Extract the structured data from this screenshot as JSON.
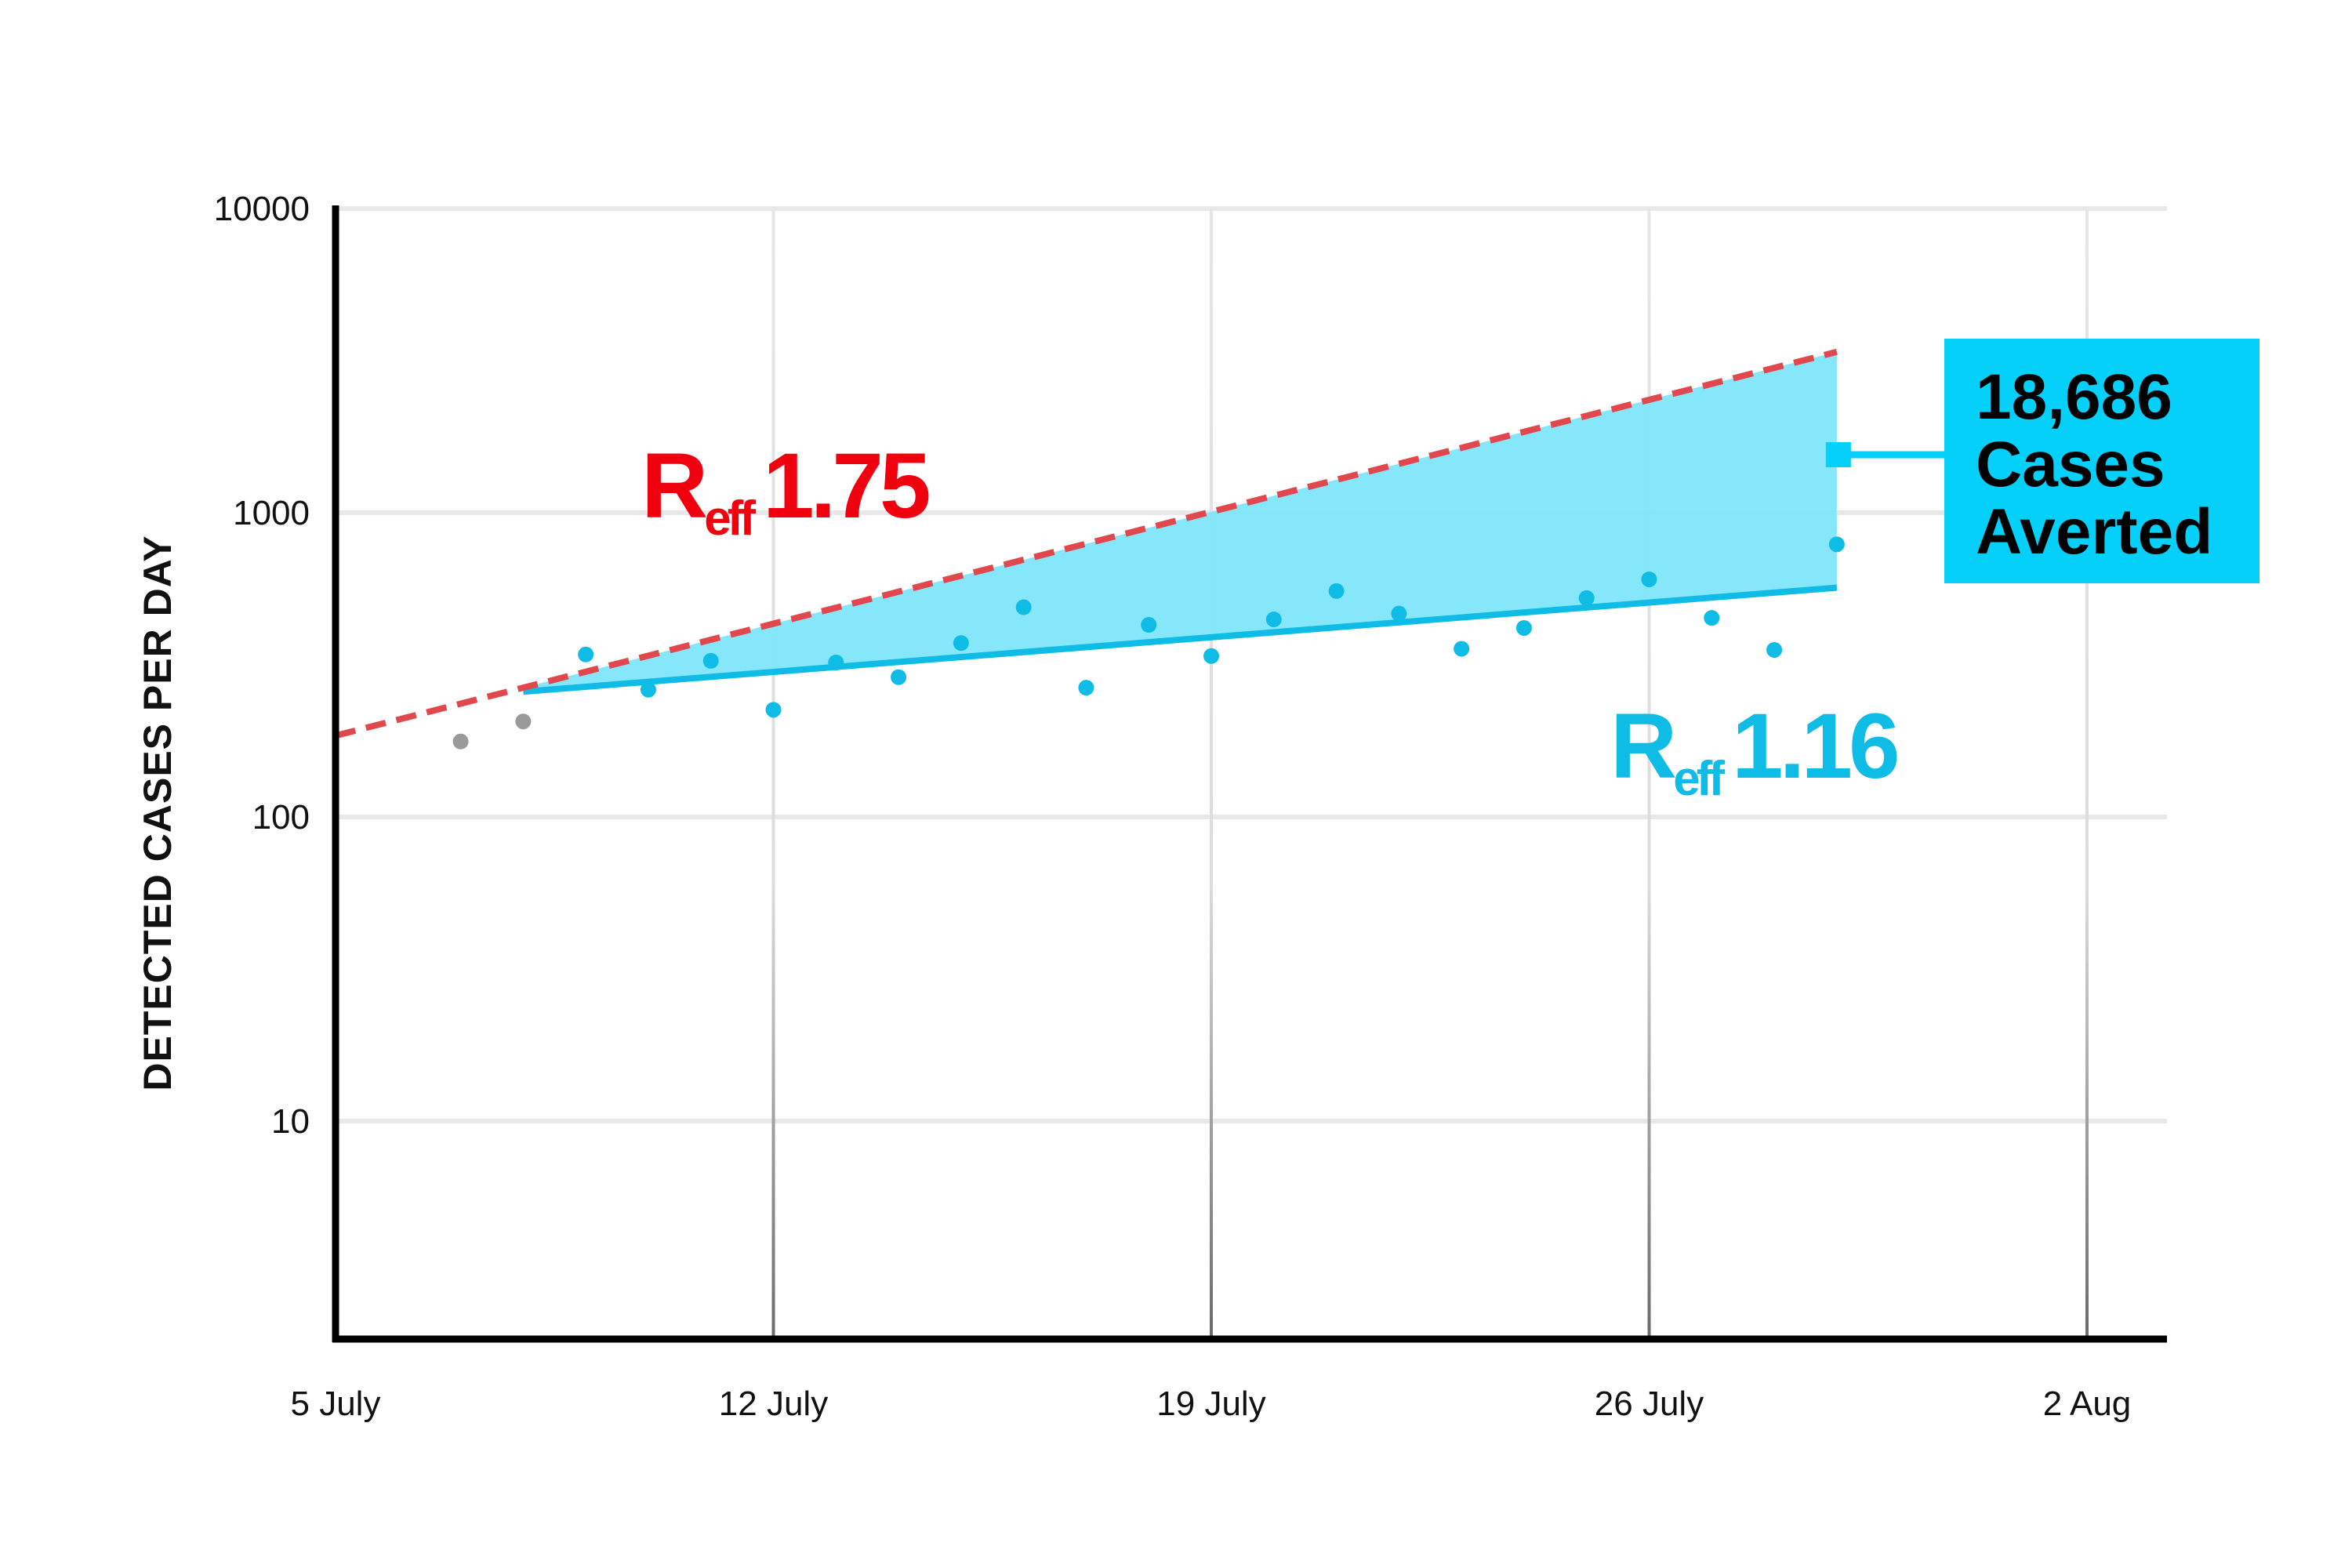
{
  "chart_data": {
    "type": "scatter",
    "ylabel": "DETECTED CASES PER DAY",
    "xlabel": "",
    "y_scale": "log",
    "ylim": [
      2,
      10000
    ],
    "xlim": [
      "2020-07-05",
      "2020-08-02"
    ],
    "y_ticks": [
      {
        "value": 10,
        "label": "10"
      },
      {
        "value": 100,
        "label": "100"
      },
      {
        "value": 1000,
        "label": "1000"
      },
      {
        "value": 10000,
        "label": "10000"
      }
    ],
    "x_ticks": [
      {
        "value": "2020-07-05",
        "label": "5 July"
      },
      {
        "value": "2020-07-12",
        "label": "12 July"
      },
      {
        "value": "2020-07-19",
        "label": "19 July"
      },
      {
        "value": "2020-07-26",
        "label": "26 July"
      },
      {
        "value": "2020-08-02",
        "label": "2 Aug"
      }
    ],
    "grid": true,
    "colors": {
      "observed": "#0fbce6",
      "earlier": "#9a9a9a",
      "high_line": "#e0484e",
      "low_line": "#0fbce6",
      "fill": "#7fe6fb",
      "callout_bg": "#05d0f9",
      "reff_high": "#f0000f",
      "reff_low": "#0fbce6"
    },
    "series": [
      {
        "role": "earlier",
        "points": [
          {
            "x": "2020-07-07",
            "y": 177
          },
          {
            "x": "2020-07-08",
            "y": 206
          }
        ]
      },
      {
        "role": "observed",
        "points": [
          {
            "x": "2020-07-09",
            "y": 342
          },
          {
            "x": "2020-07-10",
            "y": 262
          },
          {
            "x": "2020-07-11",
            "y": 326
          },
          {
            "x": "2020-07-12",
            "y": 225
          },
          {
            "x": "2020-07-13",
            "y": 322
          },
          {
            "x": "2020-07-14",
            "y": 288
          },
          {
            "x": "2020-07-15",
            "y": 373
          },
          {
            "x": "2020-07-16",
            "y": 489
          },
          {
            "x": "2020-07-17",
            "y": 266
          },
          {
            "x": "2020-07-18",
            "y": 428
          },
          {
            "x": "2020-07-19",
            "y": 338
          },
          {
            "x": "2020-07-20",
            "y": 446
          },
          {
            "x": "2020-07-21",
            "y": 553
          },
          {
            "x": "2020-07-22",
            "y": 466
          },
          {
            "x": "2020-07-23",
            "y": 357
          },
          {
            "x": "2020-07-24",
            "y": 418
          },
          {
            "x": "2020-07-25",
            "y": 524
          },
          {
            "x": "2020-07-26",
            "y": 604
          },
          {
            "x": "2020-07-27",
            "y": 451
          },
          {
            "x": "2020-07-28",
            "y": 354
          },
          {
            "x": "2020-07-29",
            "y": 787
          }
        ]
      }
    ],
    "trend_high": {
      "label_main": "R",
      "label_sub": "eff",
      "label_value": "1.75",
      "style": "dashed",
      "start": {
        "x": "2020-07-05",
        "y": 185
      },
      "end": {
        "x": "2020-07-29",
        "y": 3380
      }
    },
    "trend_low": {
      "label_main": "R",
      "label_sub": "eff",
      "label_value": "1.16",
      "style": "solid",
      "start": {
        "x": "2020-07-08",
        "y": 258
      },
      "end": {
        "x": "2020-07-29",
        "y": 567
      }
    },
    "callout": {
      "lines": [
        "18,686",
        "Cases",
        "Averted"
      ]
    }
  }
}
